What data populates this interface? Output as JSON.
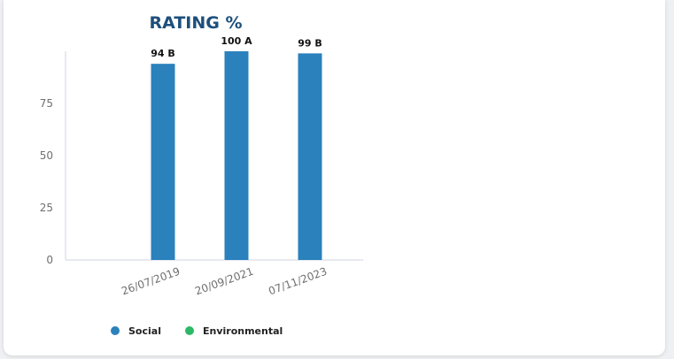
{
  "colors": {
    "social": "#2a81bc",
    "environmental": "#2db866",
    "axis": "#cfd6e0",
    "title": "#1d4f7c"
  },
  "chart_data": {
    "type": "bar",
    "title": "RATING %",
    "categories": [
      "26/07/2019",
      "20/09/2021",
      "07/11/2023"
    ],
    "series": [
      {
        "name": "Social",
        "values": [
          94,
          100,
          99
        ],
        "labels": [
          "94 B",
          "100 A",
          "99 B"
        ]
      },
      {
        "name": "Environmental",
        "values": [
          null,
          null,
          null
        ]
      }
    ],
    "y_ticks": [
      0,
      25,
      50,
      75
    ],
    "ylim": [
      0,
      100
    ],
    "grid": false,
    "legend": "bottom"
  }
}
